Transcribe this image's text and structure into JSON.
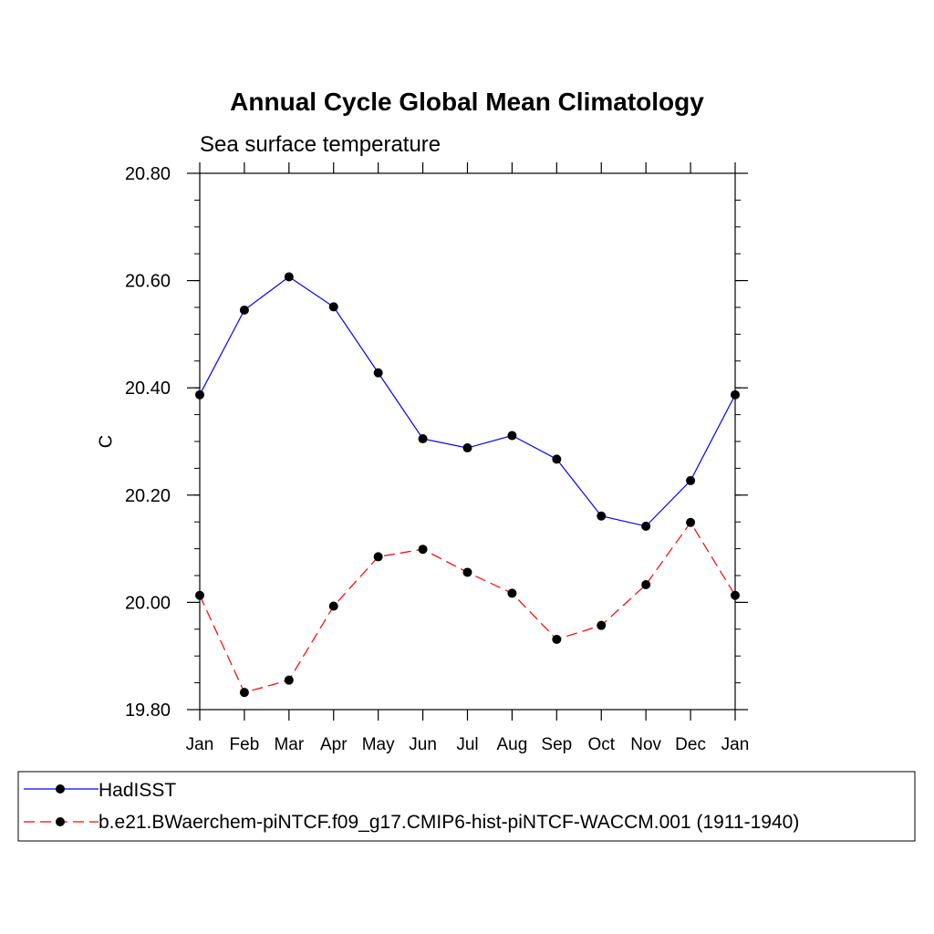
{
  "chart_data": {
    "type": "line",
    "title": "Annual Cycle Global Mean Climatology",
    "subtitle": "Sea surface temperature",
    "xlabel": "",
    "ylabel": "C",
    "categories": [
      "Jan",
      "Feb",
      "Mar",
      "Apr",
      "May",
      "Jun",
      "Jul",
      "Aug",
      "Sep",
      "Oct",
      "Nov",
      "Dec",
      "Jan"
    ],
    "ylim": [
      19.8,
      20.8
    ],
    "yticks": [
      "20.80",
      "20.60",
      "20.40",
      "20.20",
      "20.00",
      "19.80"
    ],
    "ytick_values": [
      20.8,
      20.6,
      20.4,
      20.2,
      20.0,
      19.8
    ],
    "grid": false,
    "legend_position": "bottom",
    "series": [
      {
        "name": "HadISST",
        "color": "#0000ff",
        "style": "solid",
        "values": [
          20.387,
          20.545,
          20.607,
          20.551,
          20.428,
          20.305,
          20.288,
          20.311,
          20.267,
          20.161,
          20.142,
          20.227,
          20.387
        ]
      },
      {
        "name": "b.e21.BWaerchem-piNTCF.f09_g17.CMIP6-hist-piNTCF-WACCM.001 (1911-1940)",
        "color": "#ff0000",
        "style": "dashed",
        "values": [
          20.013,
          19.832,
          19.855,
          19.993,
          20.085,
          20.099,
          20.056,
          20.017,
          19.931,
          19.957,
          20.033,
          20.149,
          20.013
        ]
      }
    ]
  }
}
